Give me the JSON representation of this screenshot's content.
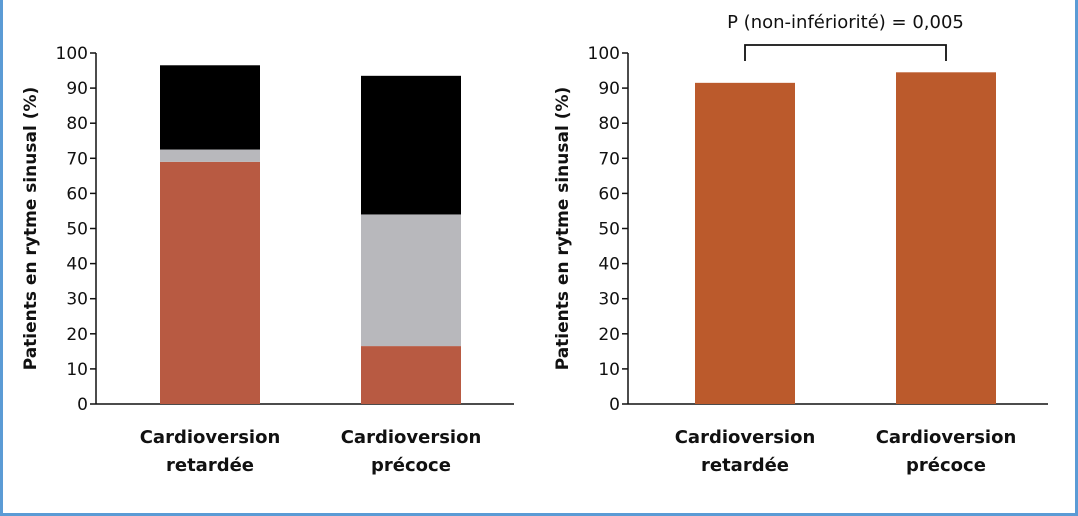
{
  "chart_data": [
    {
      "type": "bar",
      "stacked": true,
      "title": "",
      "xlabel": "",
      "ylabel": "Patients en rytme sinusal (%)",
      "ylim": [
        0,
        100
      ],
      "yticks": [
        0,
        10,
        20,
        30,
        40,
        50,
        60,
        70,
        80,
        90,
        100
      ],
      "categories": [
        [
          "Cardioversion",
          "retardée"
        ],
        [
          "Cardioversion",
          "précoce"
        ]
      ],
      "series": [
        {
          "values": [
            69,
            16.5
          ],
          "color": "#b85a42"
        },
        {
          "values": [
            3.5,
            37.5
          ],
          "color": "#b8b8bc"
        },
        {
          "values": [
            24,
            39.5
          ],
          "color": "#000000"
        }
      ],
      "grid": false,
      "legend": "none"
    },
    {
      "type": "bar",
      "title": "",
      "xlabel": "",
      "ylabel": "Patients en rytme sinusal (%)",
      "ylim": [
        0,
        100
      ],
      "yticks": [
        0,
        10,
        20,
        30,
        40,
        50,
        60,
        70,
        80,
        90,
        100
      ],
      "categories": [
        [
          "Cardioversion",
          "retardée"
        ],
        [
          "Cardioversion",
          "précoce"
        ]
      ],
      "values": [
        91.5,
        94.5
      ],
      "color": "#bb5a2c",
      "annotation": "P (non-infériorité) = 0,005",
      "grid": false,
      "legend": "none"
    }
  ]
}
